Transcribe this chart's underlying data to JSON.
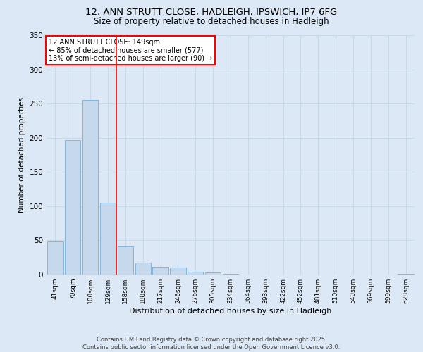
{
  "title1": "12, ANN STRUTT CLOSE, HADLEIGH, IPSWICH, IP7 6FG",
  "title2": "Size of property relative to detached houses in Hadleigh",
  "xlabel": "Distribution of detached houses by size in Hadleigh",
  "ylabel": "Number of detached properties",
  "categories": [
    "41sqm",
    "70sqm",
    "100sqm",
    "129sqm",
    "158sqm",
    "188sqm",
    "217sqm",
    "246sqm",
    "276sqm",
    "305sqm",
    "334sqm",
    "364sqm",
    "393sqm",
    "422sqm",
    "452sqm",
    "481sqm",
    "510sqm",
    "540sqm",
    "569sqm",
    "599sqm",
    "628sqm"
  ],
  "values": [
    48,
    197,
    255,
    105,
    41,
    17,
    11,
    10,
    4,
    3,
    1,
    0,
    0,
    0,
    0,
    0,
    0,
    0,
    0,
    0,
    1
  ],
  "bar_color": "#c5d8ec",
  "bar_edge_color": "#7bafd4",
  "grid_color": "#c8d8e8",
  "background_color": "#dce8f5",
  "vline_x_index": 3.5,
  "annotation_text": "12 ANN STRUTT CLOSE: 149sqm\n← 85% of detached houses are smaller (577)\n13% of semi-detached houses are larger (90) →",
  "annotation_box_color": "white",
  "annotation_box_edge": "red",
  "vline_color": "red",
  "footer1": "Contains HM Land Registry data © Crown copyright and database right 2025.",
  "footer2": "Contains public sector information licensed under the Open Government Licence v3.0.",
  "ylim": [
    0,
    350
  ],
  "yticks": [
    0,
    50,
    100,
    150,
    200,
    250,
    300,
    350
  ]
}
